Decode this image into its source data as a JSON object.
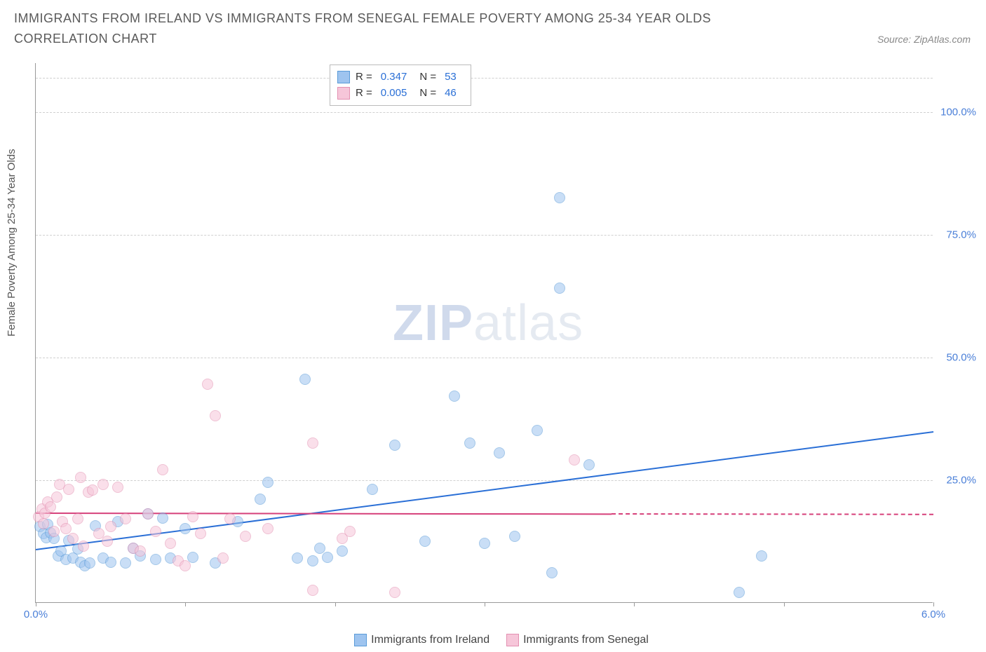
{
  "title": "IMMIGRANTS FROM IRELAND VS IMMIGRANTS FROM SENEGAL FEMALE POVERTY AMONG 25-34 YEAR OLDS CORRELATION CHART",
  "source_label": "Source: ZipAtlas.com",
  "y_axis_label": "Female Poverty Among 25-34 Year Olds",
  "watermark_a": "ZIP",
  "watermark_b": "atlas",
  "chart": {
    "type": "scatter",
    "xlim": [
      0.0,
      6.0
    ],
    "ylim": [
      0.0,
      110.0
    ],
    "xtick_positions": [
      0.0,
      1.0,
      2.0,
      3.0,
      4.0,
      5.0,
      6.0
    ],
    "xtick_labels": {
      "0": "0.0%",
      "6": "6.0%"
    },
    "ytick_positions": [
      25.0,
      50.0,
      75.0,
      100.0
    ],
    "ytick_labels": [
      "25.0%",
      "50.0%",
      "75.0%",
      "100.0%"
    ],
    "grid_color": "#d0d0d0",
    "axis_color": "#999999",
    "background_color": "#ffffff",
    "marker_radius": 8,
    "marker_opacity": 0.55,
    "marker_stroke_opacity": 0.9,
    "tick_label_color": "#4a7fd8",
    "tick_label_fontsize": 15
  },
  "series": [
    {
      "name": "Immigrants from Ireland",
      "fill_color": "#9ec4ef",
      "stroke_color": "#5a9bd8",
      "trend_color": "#2a6fd6",
      "trend": {
        "x0": 0.0,
        "y0": 11.0,
        "x1": 6.0,
        "y1": 35.0,
        "data_xmax": 6.0
      },
      "R": "0.347",
      "N": "53",
      "points": [
        [
          0.03,
          15.5
        ],
        [
          0.05,
          14.0
        ],
        [
          0.07,
          13.2
        ],
        [
          0.08,
          15.8
        ],
        [
          0.1,
          14.1
        ],
        [
          0.12,
          13.0
        ],
        [
          0.15,
          9.5
        ],
        [
          0.17,
          10.5
        ],
        [
          0.2,
          8.7
        ],
        [
          0.22,
          12.6
        ],
        [
          0.25,
          9.0
        ],
        [
          0.28,
          10.8
        ],
        [
          0.3,
          8.2
        ],
        [
          0.33,
          7.5
        ],
        [
          0.36,
          8.0
        ],
        [
          0.4,
          15.6
        ],
        [
          0.45,
          9.0
        ],
        [
          0.5,
          8.2
        ],
        [
          0.55,
          16.5
        ],
        [
          0.6,
          8.0
        ],
        [
          0.65,
          11.0
        ],
        [
          0.7,
          9.5
        ],
        [
          0.75,
          18.0
        ],
        [
          0.8,
          8.7
        ],
        [
          0.85,
          17.2
        ],
        [
          0.9,
          9.0
        ],
        [
          1.0,
          15.0
        ],
        [
          1.05,
          9.2
        ],
        [
          1.2,
          8.0
        ],
        [
          1.35,
          16.5
        ],
        [
          1.5,
          21.0
        ],
        [
          1.55,
          24.5
        ],
        [
          1.75,
          9.0
        ],
        [
          1.8,
          45.5
        ],
        [
          1.85,
          8.5
        ],
        [
          1.9,
          11.0
        ],
        [
          1.95,
          9.2
        ],
        [
          2.05,
          10.5
        ],
        [
          2.25,
          23.0
        ],
        [
          2.4,
          32.0
        ],
        [
          2.6,
          12.5
        ],
        [
          2.8,
          42.0
        ],
        [
          2.9,
          32.5
        ],
        [
          3.0,
          12.0
        ],
        [
          3.1,
          30.5
        ],
        [
          3.2,
          13.5
        ],
        [
          3.35,
          35.0
        ],
        [
          3.45,
          6.0
        ],
        [
          3.5,
          64.0
        ],
        [
          3.5,
          82.5
        ],
        [
          3.7,
          28.0
        ],
        [
          4.85,
          9.5
        ],
        [
          4.7,
          2.0
        ]
      ]
    },
    {
      "name": "Immigrants from Senegal",
      "fill_color": "#f6c6d9",
      "stroke_color": "#e390b1",
      "trend_color": "#d6407a",
      "trend": {
        "x0": 0.0,
        "y0": 18.5,
        "x1": 6.0,
        "y1": 18.2,
        "data_xmax": 3.85
      },
      "R": "0.005",
      "N": "46",
      "points": [
        [
          0.02,
          17.5
        ],
        [
          0.04,
          19.0
        ],
        [
          0.05,
          16.0
        ],
        [
          0.06,
          18.2
        ],
        [
          0.08,
          20.5
        ],
        [
          0.1,
          19.5
        ],
        [
          0.12,
          14.5
        ],
        [
          0.14,
          21.5
        ],
        [
          0.16,
          24.0
        ],
        [
          0.18,
          16.5
        ],
        [
          0.2,
          15.0
        ],
        [
          0.22,
          23.0
        ],
        [
          0.25,
          13.0
        ],
        [
          0.28,
          17.0
        ],
        [
          0.3,
          25.5
        ],
        [
          0.32,
          11.5
        ],
        [
          0.35,
          22.5
        ],
        [
          0.38,
          22.8
        ],
        [
          0.42,
          14.0
        ],
        [
          0.45,
          24.0
        ],
        [
          0.48,
          12.5
        ],
        [
          0.5,
          15.5
        ],
        [
          0.55,
          23.5
        ],
        [
          0.6,
          17.0
        ],
        [
          0.65,
          11.0
        ],
        [
          0.7,
          10.5
        ],
        [
          0.75,
          18.0
        ],
        [
          0.8,
          14.5
        ],
        [
          0.85,
          27.0
        ],
        [
          0.9,
          12.0
        ],
        [
          0.95,
          8.5
        ],
        [
          1.0,
          7.5
        ],
        [
          1.05,
          17.5
        ],
        [
          1.1,
          14.0
        ],
        [
          1.15,
          44.5
        ],
        [
          1.2,
          38.0
        ],
        [
          1.25,
          9.0
        ],
        [
          1.3,
          17.0
        ],
        [
          1.4,
          13.5
        ],
        [
          1.55,
          15.0
        ],
        [
          1.85,
          32.5
        ],
        [
          1.85,
          2.5
        ],
        [
          2.05,
          13.0
        ],
        [
          2.1,
          14.5
        ],
        [
          2.4,
          2.0
        ],
        [
          3.6,
          29.0
        ]
      ]
    }
  ],
  "legend": {
    "R_label": "R =",
    "N_label": "N ="
  }
}
